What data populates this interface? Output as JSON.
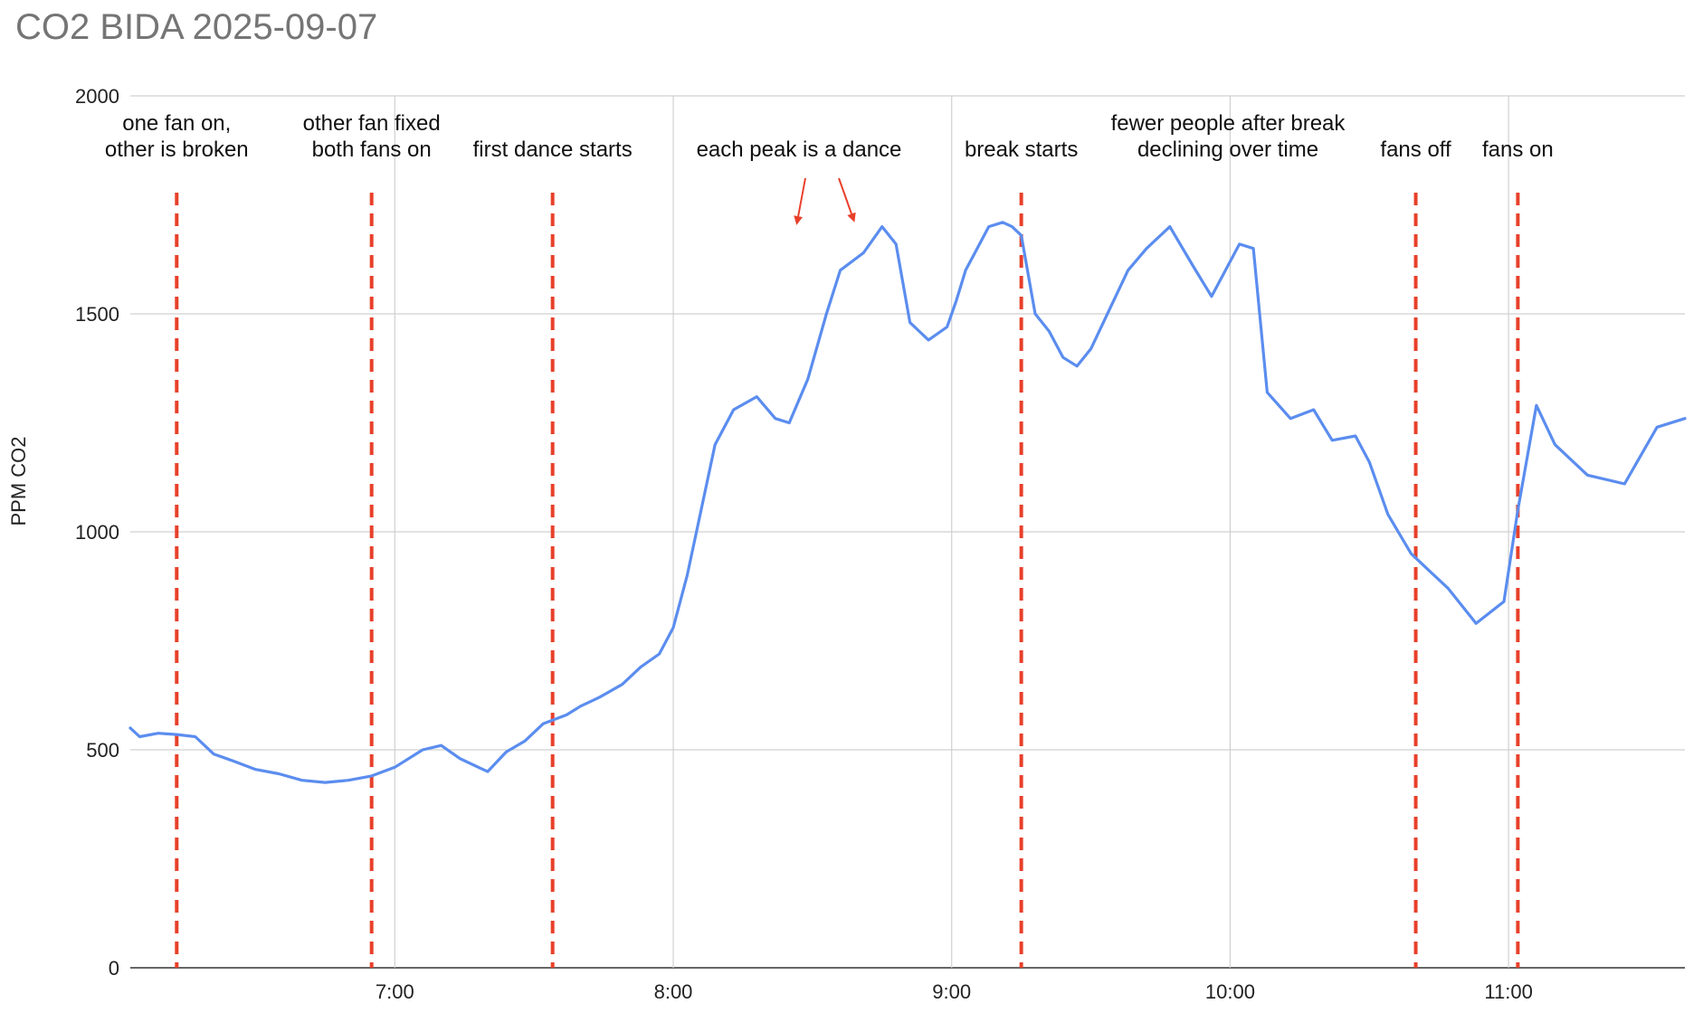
{
  "chart_data": {
    "type": "line",
    "title": "CO2 BIDA 2025-09-07",
    "xlabel": "",
    "ylabel": "PPM CO2",
    "ylim": [
      0,
      2000
    ],
    "xlim": [
      "6:03",
      "11:38"
    ],
    "grid": true,
    "legend": "none",
    "y_ticks": [
      "0",
      "500",
      "1000",
      "1500",
      "2000"
    ],
    "x_ticks": [
      "7:00",
      "8:00",
      "9:00",
      "10:00",
      "11:00"
    ],
    "x_tick_times": [
      "7:00",
      "8:00",
      "9:00",
      "10:00",
      "11:00"
    ],
    "series": [
      {
        "color": "#5b8def",
        "x": [
          "6:03",
          "6:05",
          "6:09",
          "6:13",
          "6:17",
          "6:19",
          "6:21",
          "6:25",
          "6:30",
          "6:35",
          "6:40",
          "6:45",
          "6:50",
          "6:55",
          "7:00",
          "7:06",
          "7:10",
          "7:14",
          "7:18",
          "7:20",
          "7:24",
          "7:28",
          "7:32",
          "7:37",
          "7:40",
          "7:44",
          "7:49",
          "7:53",
          "7:57",
          "8:00",
          "8:03",
          "8:06",
          "8:09",
          "8:13",
          "8:18",
          "8:22",
          "8:25",
          "8:29",
          "8:33",
          "8:36",
          "8:41",
          "8:45",
          "8:48",
          "8:51",
          "8:55",
          "8:59",
          "9:01",
          "9:03",
          "9:05",
          "9:08",
          "9:11",
          "9:13",
          "9:15",
          "9:18",
          "9:21",
          "9:24",
          "9:27",
          "9:30",
          "9:34",
          "9:38",
          "9:42",
          "9:47",
          "9:52",
          "9:56",
          "10:02",
          "10:05",
          "10:08",
          "10:13",
          "10:18",
          "10:22",
          "10:27",
          "10:30",
          "10:34",
          "10:39",
          "10:43",
          "10:47",
          "10:53",
          "10:59",
          "11:02",
          "11:06",
          "11:10",
          "11:17",
          "11:25",
          "11:32",
          "11:38"
        ],
        "y": [
          550,
          530,
          538,
          535,
          530,
          510,
          490,
          475,
          455,
          445,
          430,
          425,
          430,
          440,
          460,
          500,
          510,
          480,
          460,
          450,
          495,
          520,
          560,
          580,
          600,
          620,
          650,
          690,
          720,
          780,
          900,
          1050,
          1200,
          1280,
          1310,
          1260,
          1250,
          1350,
          1500,
          1600,
          1640,
          1700,
          1660,
          1480,
          1440,
          1470,
          1530,
          1600,
          1640,
          1700,
          1710,
          1700,
          1680,
          1500,
          1460,
          1400,
          1380,
          1420,
          1510,
          1600,
          1650,
          1700,
          1610,
          1540,
          1660,
          1650,
          1320,
          1260,
          1280,
          1210,
          1220,
          1160,
          1040,
          950,
          910,
          870,
          790,
          840,
          1050,
          1290,
          1200,
          1130,
          1110,
          1240,
          1260
        ]
      }
    ],
    "annotations": [
      {
        "time": "6:13",
        "lines": [
          "one fan on,",
          "other is broken"
        ]
      },
      {
        "time": "6:55",
        "lines": [
          "other fan fixed",
          "both fans on"
        ]
      },
      {
        "time": "7:34",
        "lines": [
          "first dance starts"
        ]
      },
      {
        "time": "9:15",
        "lines": [
          "break starts"
        ]
      },
      {
        "time": "10:40",
        "lines": [
          "fans off"
        ]
      },
      {
        "time": "11:02",
        "lines": [
          "fans on"
        ]
      }
    ],
    "text_annotations": [
      {
        "lines": [
          "each peak is a dance"
        ]
      },
      {
        "lines": [
          "fewer people after break",
          "declining over time"
        ]
      }
    ],
    "marker_color": "#e8402a",
    "arrow_color": "#e8402a"
  }
}
